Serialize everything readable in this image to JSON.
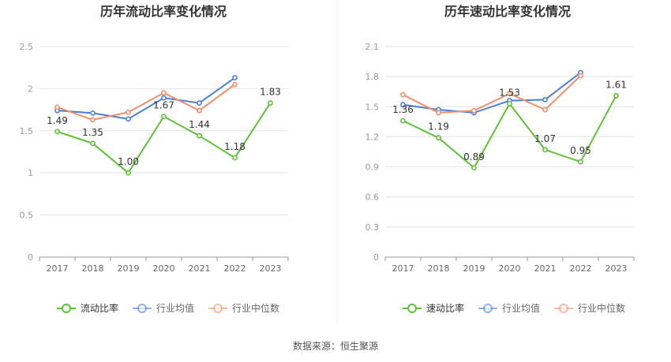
{
  "source_note": "数据来源：恒生聚源",
  "colors": {
    "main": "#5ec234",
    "avg": "#4a7fd8",
    "median": "#f0906a",
    "grid": "#e4e4e4",
    "axis": "#999999",
    "divider": "#eeeeee"
  },
  "chart_data": [
    {
      "type": "line",
      "title": "历年流动比率变化情况",
      "categories": [
        "2017",
        "2018",
        "2019",
        "2020",
        "2021",
        "2022",
        "2023"
      ],
      "ylim": [
        0,
        2.5
      ],
      "yticks": [
        "0",
        "0.5",
        "1",
        "1.5",
        "2",
        "2.5"
      ],
      "grid": true,
      "legend_position": "bottom",
      "series": [
        {
          "name": "流动比率",
          "values": [
            1.49,
            1.35,
            1.0,
            1.67,
            1.44,
            1.18,
            1.83
          ],
          "labels": [
            "1.49",
            "1.35",
            "1.00",
            "1.67",
            "1.44",
            "1.18",
            "1.83"
          ]
        },
        {
          "name": "行业均值",
          "values": [
            1.74,
            1.71,
            1.64,
            1.89,
            1.83,
            2.13,
            null
          ]
        },
        {
          "name": "行业中位数",
          "values": [
            1.78,
            1.63,
            1.72,
            1.95,
            1.74,
            2.05,
            null
          ]
        }
      ]
    },
    {
      "type": "line",
      "title": "历年速动比率变化情况",
      "categories": [
        "2017",
        "2018",
        "2019",
        "2020",
        "2021",
        "2022",
        "2023"
      ],
      "ylim": [
        0,
        2.1
      ],
      "yticks": [
        "0",
        "0.3",
        "0.6",
        "0.9",
        "1.2",
        "1.5",
        "1.8",
        "2.1"
      ],
      "grid": true,
      "legend_position": "bottom",
      "series": [
        {
          "name": "速动比率",
          "values": [
            1.36,
            1.19,
            0.89,
            1.53,
            1.07,
            0.95,
            1.61
          ],
          "labels": [
            "1.36",
            "1.19",
            "0.89",
            "1.53",
            "1.07",
            "0.95",
            "1.61"
          ]
        },
        {
          "name": "行业均值",
          "values": [
            1.52,
            1.47,
            1.44,
            1.56,
            1.57,
            1.84,
            null
          ]
        },
        {
          "name": "行业中位数",
          "values": [
            1.62,
            1.44,
            1.46,
            1.63,
            1.47,
            1.81,
            null
          ]
        }
      ]
    }
  ]
}
